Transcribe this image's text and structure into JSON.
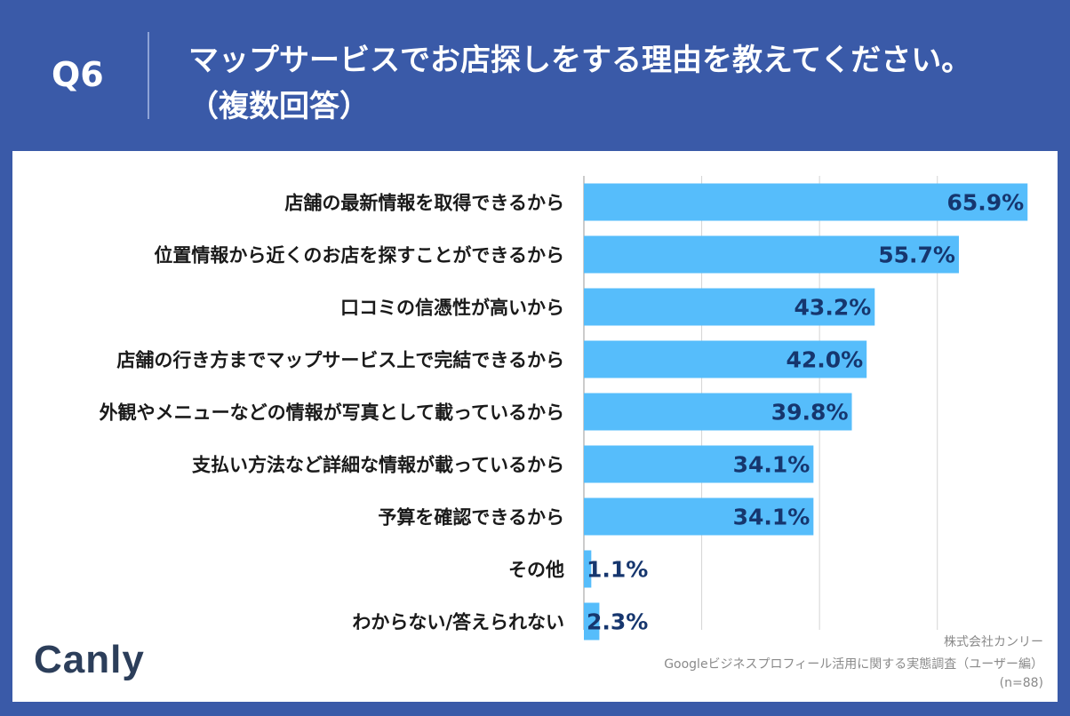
{
  "header": {
    "question_number": "Q6",
    "title": "マップサービスでお店探しをする理由を教えてください。",
    "subtitle": "（複数回答）"
  },
  "chart_data": {
    "type": "bar",
    "orientation": "horizontal",
    "categories": [
      "店舗の最新情報を取得できるから",
      "位置情報から近くのお店を探すことができるから",
      "口コミの信憑性が高いから",
      "店舗の行き方までマップサービス上で完結できるから",
      "外観やメニューなどの情報が写真として載っているから",
      "支払い方法など詳細な情報が載っているから",
      "予算を確認できるから",
      "その他",
      "わからない/答えられない"
    ],
    "values": [
      65.9,
      55.7,
      43.2,
      42.0,
      39.8,
      34.1,
      34.1,
      1.1,
      2.3
    ],
    "value_labels": [
      "65.9%",
      "55.7%",
      "43.2%",
      "42.0%",
      "39.8%",
      "34.1%",
      "34.1%",
      "1.1%",
      "2.3%"
    ],
    "xlim": [
      0,
      66
    ],
    "gridlines": [
      0,
      17.5,
      35,
      52.5
    ],
    "bar_color": "#56bdfb",
    "label_color": "#16366e"
  },
  "logo": {
    "text": "Canly"
  },
  "credit": {
    "company": "株式会社カンリー",
    "survey": "Googleビジネスプロフィール活用に関する実態調査（ユーザー編）",
    "sample": "(n=88)"
  }
}
